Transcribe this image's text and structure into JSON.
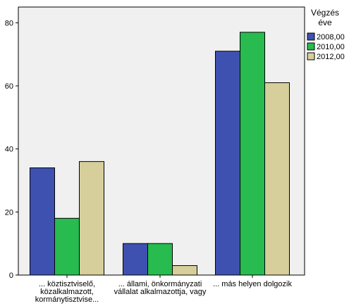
{
  "chart_data": {
    "type": "bar",
    "categories": [
      [
        "... köztisztviselő,",
        "közalkalmazott,",
        "kormánytisztvise..."
      ],
      [
        "... állami, önkormányzati",
        "vállalat alkalmazottja, vagy"
      ],
      [
        "... más helyen dolgozik"
      ]
    ],
    "series": [
      {
        "name": "2008,00",
        "values": [
          34,
          10,
          71
        ],
        "color": "#3f51b0"
      },
      {
        "name": "2010,00",
        "values": [
          18,
          10,
          77
        ],
        "color": "#28bb4f"
      },
      {
        "name": "2012,00",
        "values": [
          36,
          3,
          61
        ],
        "color": "#d6cf9b"
      }
    ],
    "ylim": [
      0,
      85
    ],
    "yticks": [
      "0",
      "20",
      "40",
      "60",
      "80"
    ],
    "ytick_values": [
      0,
      20,
      40,
      60,
      80
    ],
    "legend": {
      "title": [
        "Végzés",
        "éve"
      ],
      "position": "right"
    },
    "plot_background": "#f0f0f0",
    "grid": false,
    "title": "",
    "xlabel": "",
    "ylabel": ""
  }
}
